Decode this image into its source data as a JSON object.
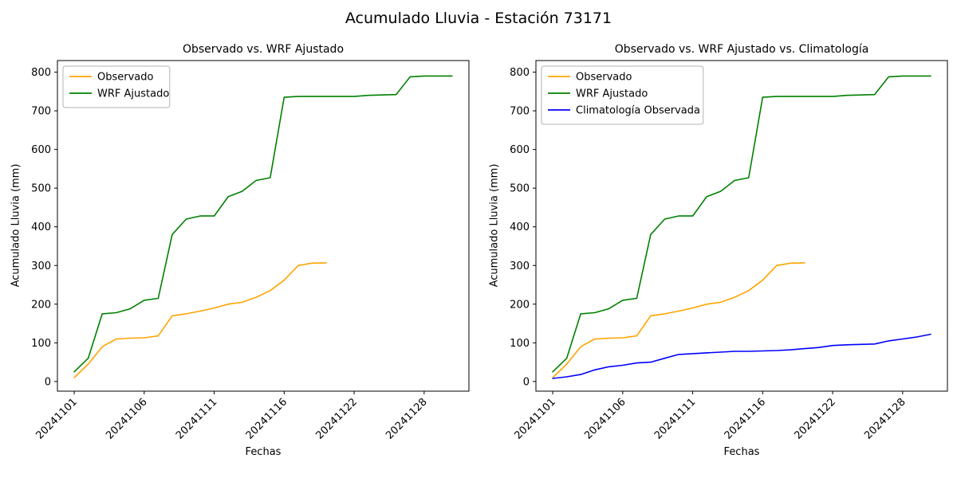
{
  "suptitle": "Acumulado Lluvia - Estación 73171",
  "chart_data": [
    {
      "type": "line",
      "title": "Observado vs. WRF Ajustado",
      "xlabel": "Fechas",
      "ylabel": "Acumulado Lluvia (mm)",
      "legend_position": "upper left",
      "grid": false,
      "ylim": [
        -25,
        830
      ],
      "yticks": [
        0,
        100,
        200,
        300,
        400,
        500,
        600,
        700,
        800
      ],
      "x": [
        "20241101",
        "20241102",
        "20241103",
        "20241104",
        "20241105",
        "20241106",
        "20241107",
        "20241108",
        "20241109",
        "20241110",
        "20241111",
        "20241112",
        "20241113",
        "20241114",
        "20241115",
        "20241116",
        "20241118",
        "20241119",
        "20241120",
        "20241121",
        "20241122",
        "20241123",
        "20241125",
        "20241126",
        "20241127",
        "20241128",
        "20241129",
        "20241130"
      ],
      "xtick_indices": [
        0,
        5,
        10,
        15,
        20,
        25
      ],
      "xtick_labels": [
        "20241101",
        "20241106",
        "20241111",
        "20241116",
        "20241122",
        "20241128"
      ],
      "series": [
        {
          "name": "Observado",
          "color": "#FFA500",
          "values": [
            10,
            45,
            90,
            110,
            112,
            113,
            118,
            170,
            175,
            182,
            190,
            200,
            205,
            218,
            235,
            262,
            300,
            306,
            307,
            null,
            null,
            null,
            null,
            null,
            null,
            null,
            null,
            null
          ]
        },
        {
          "name": "WRF Ajustado",
          "color": "#008000",
          "values": [
            25,
            60,
            175,
            178,
            188,
            210,
            215,
            380,
            420,
            428,
            428,
            478,
            492,
            520,
            527,
            735,
            737,
            737,
            737,
            737,
            737,
            740,
            741,
            742,
            788,
            790,
            790,
            790
          ]
        }
      ]
    },
    {
      "type": "line",
      "title": "Observado vs. WRF Ajustado vs. Climatología",
      "xlabel": "Fechas",
      "ylabel": "Acumulado Lluvia (mm)",
      "legend_position": "upper left",
      "grid": false,
      "ylim": [
        -25,
        830
      ],
      "yticks": [
        0,
        100,
        200,
        300,
        400,
        500,
        600,
        700,
        800
      ],
      "x": [
        "20241101",
        "20241102",
        "20241103",
        "20241104",
        "20241105",
        "20241106",
        "20241107",
        "20241108",
        "20241109",
        "20241110",
        "20241111",
        "20241112",
        "20241113",
        "20241114",
        "20241115",
        "20241116",
        "20241118",
        "20241119",
        "20241120",
        "20241121",
        "20241122",
        "20241123",
        "20241125",
        "20241126",
        "20241127",
        "20241128",
        "20241129",
        "20241130"
      ],
      "xtick_indices": [
        0,
        5,
        10,
        15,
        20,
        25
      ],
      "xtick_labels": [
        "20241101",
        "20241106",
        "20241111",
        "20241116",
        "20241122",
        "20241128"
      ],
      "series": [
        {
          "name": "Observado",
          "color": "#FFA500",
          "values": [
            10,
            45,
            90,
            110,
            112,
            113,
            118,
            170,
            175,
            182,
            190,
            200,
            205,
            218,
            235,
            262,
            300,
            306,
            307,
            null,
            null,
            null,
            null,
            null,
            null,
            null,
            null,
            null
          ]
        },
        {
          "name": "WRF Ajustado",
          "color": "#008000",
          "values": [
            25,
            60,
            175,
            178,
            188,
            210,
            215,
            380,
            420,
            428,
            428,
            478,
            492,
            520,
            527,
            735,
            737,
            737,
            737,
            737,
            737,
            740,
            741,
            742,
            788,
            790,
            790,
            790
          ]
        },
        {
          "name": "Climatología Observada",
          "color": "#0000FF",
          "values": [
            8,
            12,
            18,
            30,
            38,
            42,
            48,
            50,
            60,
            70,
            72,
            74,
            76,
            78,
            78,
            79,
            80,
            82,
            85,
            88,
            93,
            95,
            96,
            97,
            105,
            110,
            115,
            122
          ]
        }
      ]
    }
  ]
}
